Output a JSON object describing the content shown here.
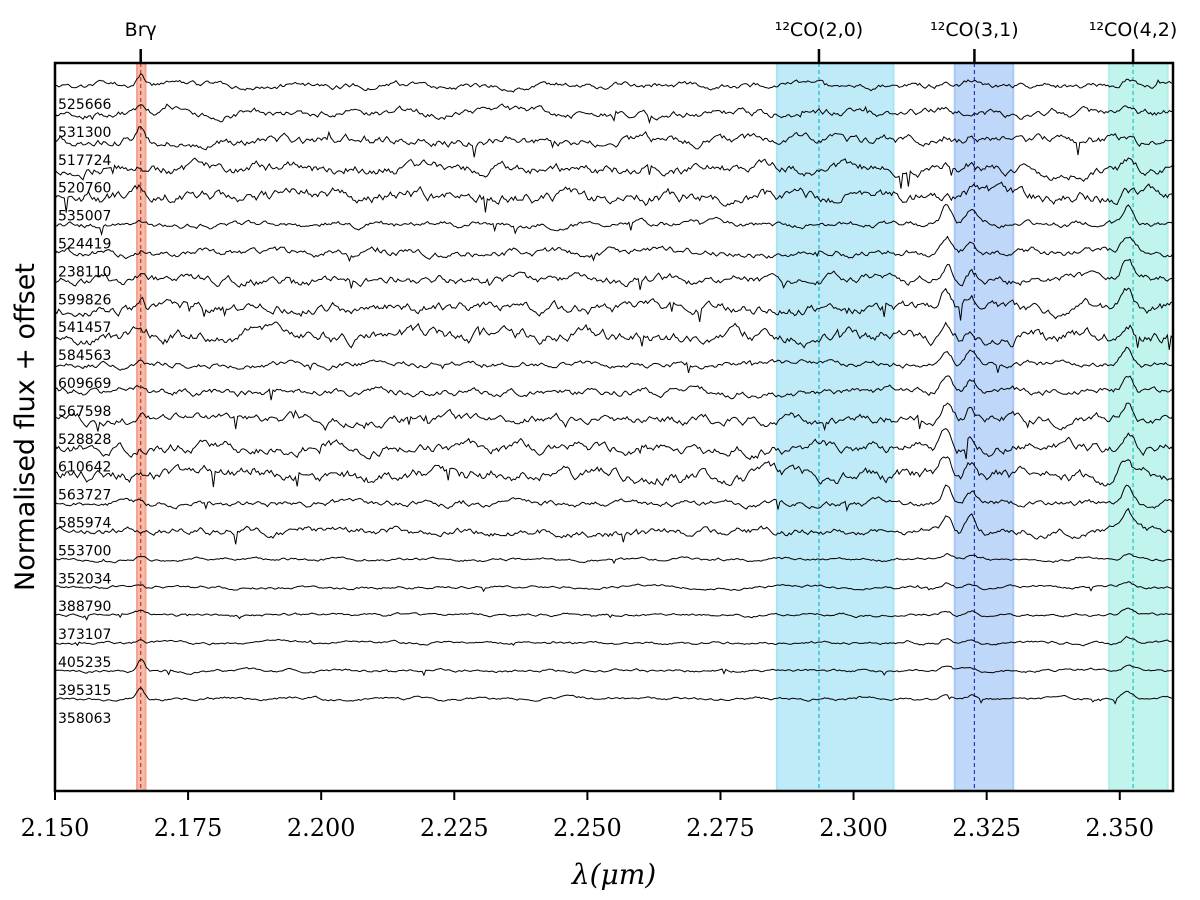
{
  "chart_data": {
    "type": "line",
    "title": "",
    "xlabel": "λ(μm)",
    "ylabel": "Normalised flux + offset",
    "xlim": [
      2.15,
      2.36
    ],
    "xticks": [
      2.15,
      2.175,
      2.2,
      2.225,
      2.25,
      2.275,
      2.3,
      2.325,
      2.35
    ],
    "xtick_labels": [
      "2.150",
      "2.175",
      "2.200",
      "2.225",
      "2.250",
      "2.275",
      "2.300",
      "2.325",
      "2.350"
    ],
    "grid": false,
    "spectral_lines": [
      {
        "label": "Brγ",
        "center": 2.1661,
        "band": [
          2.1654,
          2.167
        ],
        "color": "#f4a48f",
        "line_color": "#c0392b"
      },
      {
        "label": "¹²CO(2,0)",
        "center": 2.2935,
        "band": [
          2.2856,
          2.3075
        ],
        "color": "#a9e4f5",
        "line_color": "#12b5d6"
      },
      {
        "label": "¹²CO(3,1)",
        "center": 2.3227,
        "band": [
          2.319,
          2.33
        ],
        "color": "#a9c9f5",
        "line_color": "#1f3fbf"
      },
      {
        "label": "¹²CO(4,2)",
        "center": 2.3525,
        "band": [
          2.348,
          2.359
        ],
        "color": "#aef0e8",
        "line_color": "#17c5c0"
      }
    ],
    "series": [
      {
        "name": "525666",
        "offset": 23
      },
      {
        "name": "531300",
        "offset": 22
      },
      {
        "name": "517724",
        "offset": 21
      },
      {
        "name": "520760",
        "offset": 20
      },
      {
        "name": "535007",
        "offset": 19
      },
      {
        "name": "524419",
        "offset": 18
      },
      {
        "name": "238110",
        "offset": 17
      },
      {
        "name": "599826",
        "offset": 16
      },
      {
        "name": "541457",
        "offset": 15
      },
      {
        "name": "584563",
        "offset": 14
      },
      {
        "name": "609669",
        "offset": 13
      },
      {
        "name": "567598",
        "offset": 12
      },
      {
        "name": "528828",
        "offset": 11
      },
      {
        "name": "610642",
        "offset": 10
      },
      {
        "name": "563727",
        "offset": 9
      },
      {
        "name": "585974",
        "offset": 8
      },
      {
        "name": "553700",
        "offset": 7
      },
      {
        "name": "352034",
        "offset": 6
      },
      {
        "name": "388790",
        "offset": 5
      },
      {
        "name": "373107",
        "offset": 4
      },
      {
        "name": "405235",
        "offset": 3
      },
      {
        "name": "395315",
        "offset": 2
      },
      {
        "name": "358063",
        "offset": 1
      }
    ]
  }
}
